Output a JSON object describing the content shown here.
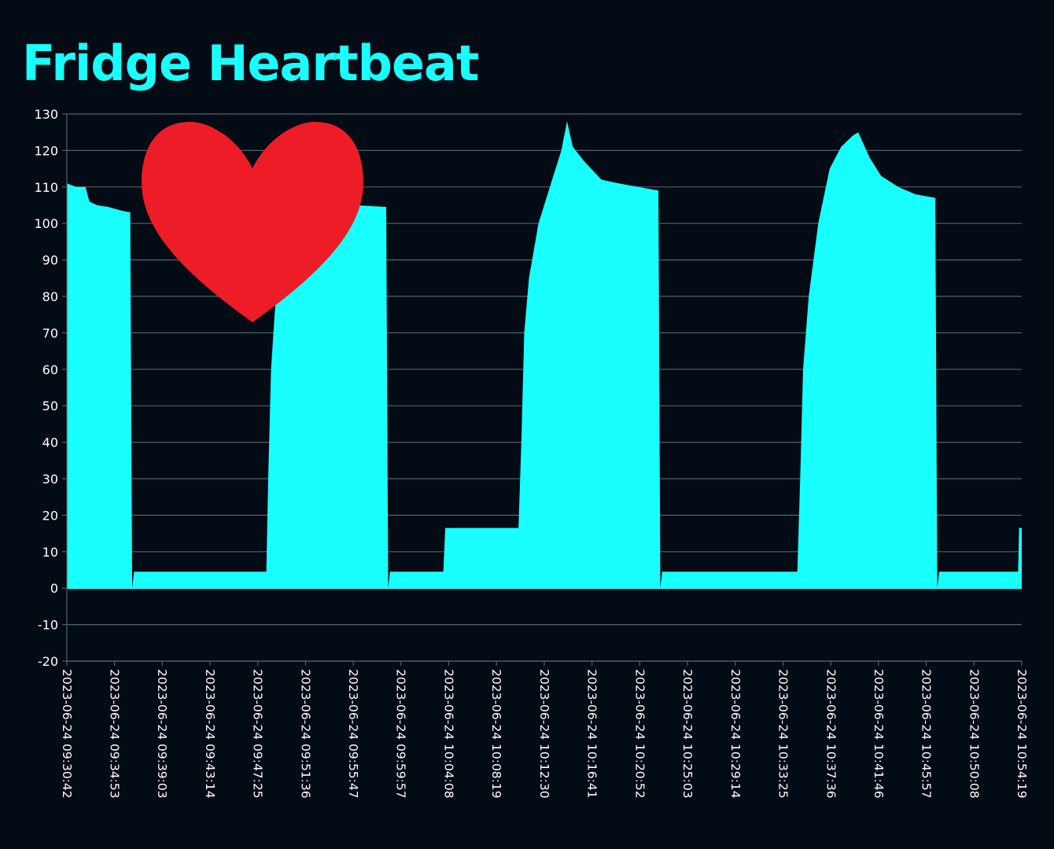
{
  "chart_data": {
    "type": "area",
    "title": "Fridge Heartbeat",
    "xlabel": "",
    "ylabel": "",
    "ylim": [
      -20,
      130
    ],
    "yticks": [
      130,
      120,
      110,
      100,
      90,
      80,
      70,
      60,
      50,
      40,
      30,
      20,
      10,
      0,
      -10,
      -20
    ],
    "xlim": [
      "2023-06-24 09:30:42",
      "2023-06-24 10:54:19"
    ],
    "xticks": [
      "2023-06-24 09:30:42",
      "2023-06-24 09:34:53",
      "2023-06-24 09:39:03",
      "2023-06-24 09:43:14",
      "2023-06-24 09:47:25",
      "2023-06-24 09:51:36",
      "2023-06-24 09:55:47",
      "2023-06-24 09:59:57",
      "2023-06-24 10:04:08",
      "2023-06-24 10:08:19",
      "2023-06-24 10:12:30",
      "2023-06-24 10:16:41",
      "2023-06-24 10:20:52",
      "2023-06-24 10:25:03",
      "2023-06-24 10:29:14",
      "2023-06-24 10:33:25",
      "2023-06-24 10:37:36",
      "2023-06-24 10:41:46",
      "2023-06-24 10:45:57",
      "2023-06-24 10:50:08",
      "2023-06-24 10:54:19"
    ],
    "grid": true,
    "legend": "none",
    "series": [
      {
        "points": [
          [
            "2023-06-24 09:30:42",
            111
          ],
          [
            "2023-06-24 09:31:30",
            110
          ],
          [
            "2023-06-24 09:32:20",
            110
          ],
          [
            "2023-06-24 09:32:40",
            106
          ],
          [
            "2023-06-24 09:33:20",
            105
          ],
          [
            "2023-06-24 09:34:20",
            104.5
          ],
          [
            "2023-06-24 09:35:30",
            103.5
          ],
          [
            "2023-06-24 09:36:15",
            103
          ],
          [
            "2023-06-24 09:36:25",
            0
          ],
          [
            "2023-06-24 09:36:35",
            4.5
          ],
          [
            "2023-06-24 09:48:00",
            4.5
          ],
          [
            "2023-06-24 09:48:10",
            4.5
          ],
          [
            "2023-06-24 09:48:20",
            30
          ],
          [
            "2023-06-24 09:48:35",
            60
          ],
          [
            "2023-06-24 09:49:00",
            80
          ],
          [
            "2023-06-24 09:50:00",
            100
          ],
          [
            "2023-06-24 09:51:30",
            110
          ],
          [
            "2023-06-24 09:53:00",
            108
          ],
          [
            "2023-06-24 09:56:00",
            105
          ],
          [
            "2023-06-24 09:58:40",
            104.5
          ],
          [
            "2023-06-24 09:58:50",
            0
          ],
          [
            "2023-06-24 09:59:00",
            4.5
          ],
          [
            "2023-06-24 10:03:40",
            4.5
          ],
          [
            "2023-06-24 10:03:50",
            16.5
          ],
          [
            "2023-06-24 10:10:00",
            16.5
          ],
          [
            "2023-06-24 10:10:15",
            16.5
          ],
          [
            "2023-06-24 10:10:30",
            40
          ],
          [
            "2023-06-24 10:10:45",
            70
          ],
          [
            "2023-06-24 10:11:10",
            85
          ],
          [
            "2023-06-24 10:12:00",
            100
          ],
          [
            "2023-06-24 10:13:00",
            110
          ],
          [
            "2023-06-24 10:14:00",
            120
          ],
          [
            "2023-06-24 10:14:30",
            128
          ],
          [
            "2023-06-24 10:15:00",
            121
          ],
          [
            "2023-06-24 10:16:00",
            117
          ],
          [
            "2023-06-24 10:17:30",
            112
          ],
          [
            "2023-06-24 10:19:00",
            111
          ],
          [
            "2023-06-24 10:22:30",
            109
          ],
          [
            "2023-06-24 10:22:40",
            0
          ],
          [
            "2023-06-24 10:22:50",
            4.5
          ],
          [
            "2023-06-24 10:34:40",
            4.5
          ],
          [
            "2023-06-24 10:34:55",
            30
          ],
          [
            "2023-06-24 10:35:10",
            60
          ],
          [
            "2023-06-24 10:35:40",
            80
          ],
          [
            "2023-06-24 10:36:30",
            100
          ],
          [
            "2023-06-24 10:37:30",
            115
          ],
          [
            "2023-06-24 10:38:30",
            121
          ],
          [
            "2023-06-24 10:39:30",
            124
          ],
          [
            "2023-06-24 10:40:00",
            125
          ],
          [
            "2023-06-24 10:41:00",
            118
          ],
          [
            "2023-06-24 10:42:00",
            113
          ],
          [
            "2023-06-24 10:43:30",
            110
          ],
          [
            "2023-06-24 10:45:00",
            108
          ],
          [
            "2023-06-24 10:46:45",
            107
          ],
          [
            "2023-06-24 10:46:55",
            0
          ],
          [
            "2023-06-24 10:47:05",
            4.5
          ],
          [
            "2023-06-24 10:54:00",
            4.5
          ],
          [
            "2023-06-24 10:54:05",
            16.5
          ],
          [
            "2023-06-24 10:54:19",
            16.5
          ]
        ]
      }
    ],
    "colors": {
      "area": "#19ffff",
      "title": "#19ffff",
      "heart": "#ee1c27",
      "grid": "#54606b",
      "background": "#030b14",
      "text": "#ffffff"
    }
  }
}
